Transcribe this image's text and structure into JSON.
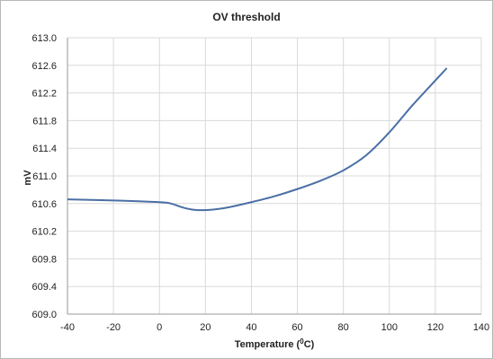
{
  "chart_data": {
    "type": "line",
    "title": "OV threshold",
    "xlabel_main": "Temperature (",
    "xlabel_sup": "0",
    "xlabel_end": "C)",
    "ylabel": "mV",
    "xlim": [
      -40,
      140
    ],
    "ylim": [
      609.0,
      613.0
    ],
    "x_ticks": [
      -40,
      -20,
      0,
      20,
      40,
      60,
      80,
      100,
      120,
      140
    ],
    "x_tick_labels": [
      "-40",
      "-20",
      "0",
      "20",
      "40",
      "60",
      "80",
      "100",
      "120",
      "140"
    ],
    "y_ticks": [
      609.0,
      609.4,
      609.8,
      610.2,
      610.6,
      611.0,
      611.4,
      611.8,
      612.2,
      612.6,
      613.0
    ],
    "y_tick_labels": [
      "609.0",
      "609.4",
      "609.8",
      "610.2",
      "610.6",
      "611.0",
      "611.4",
      "611.8",
      "612.2",
      "612.6",
      "613.0"
    ],
    "grid": true,
    "legend": "none",
    "series": [
      {
        "color": "#4a6fa5",
        "x": [
          -40,
          -20,
          0,
          5,
          10,
          15,
          20,
          25,
          30,
          40,
          50,
          60,
          70,
          80,
          90,
          100,
          110,
          120,
          125
        ],
        "y": [
          610.66,
          610.645,
          610.62,
          610.6,
          610.545,
          610.51,
          610.505,
          610.52,
          610.545,
          610.62,
          610.705,
          610.81,
          610.93,
          611.08,
          611.3,
          611.63,
          612.02,
          612.38,
          612.56
        ]
      }
    ]
  }
}
